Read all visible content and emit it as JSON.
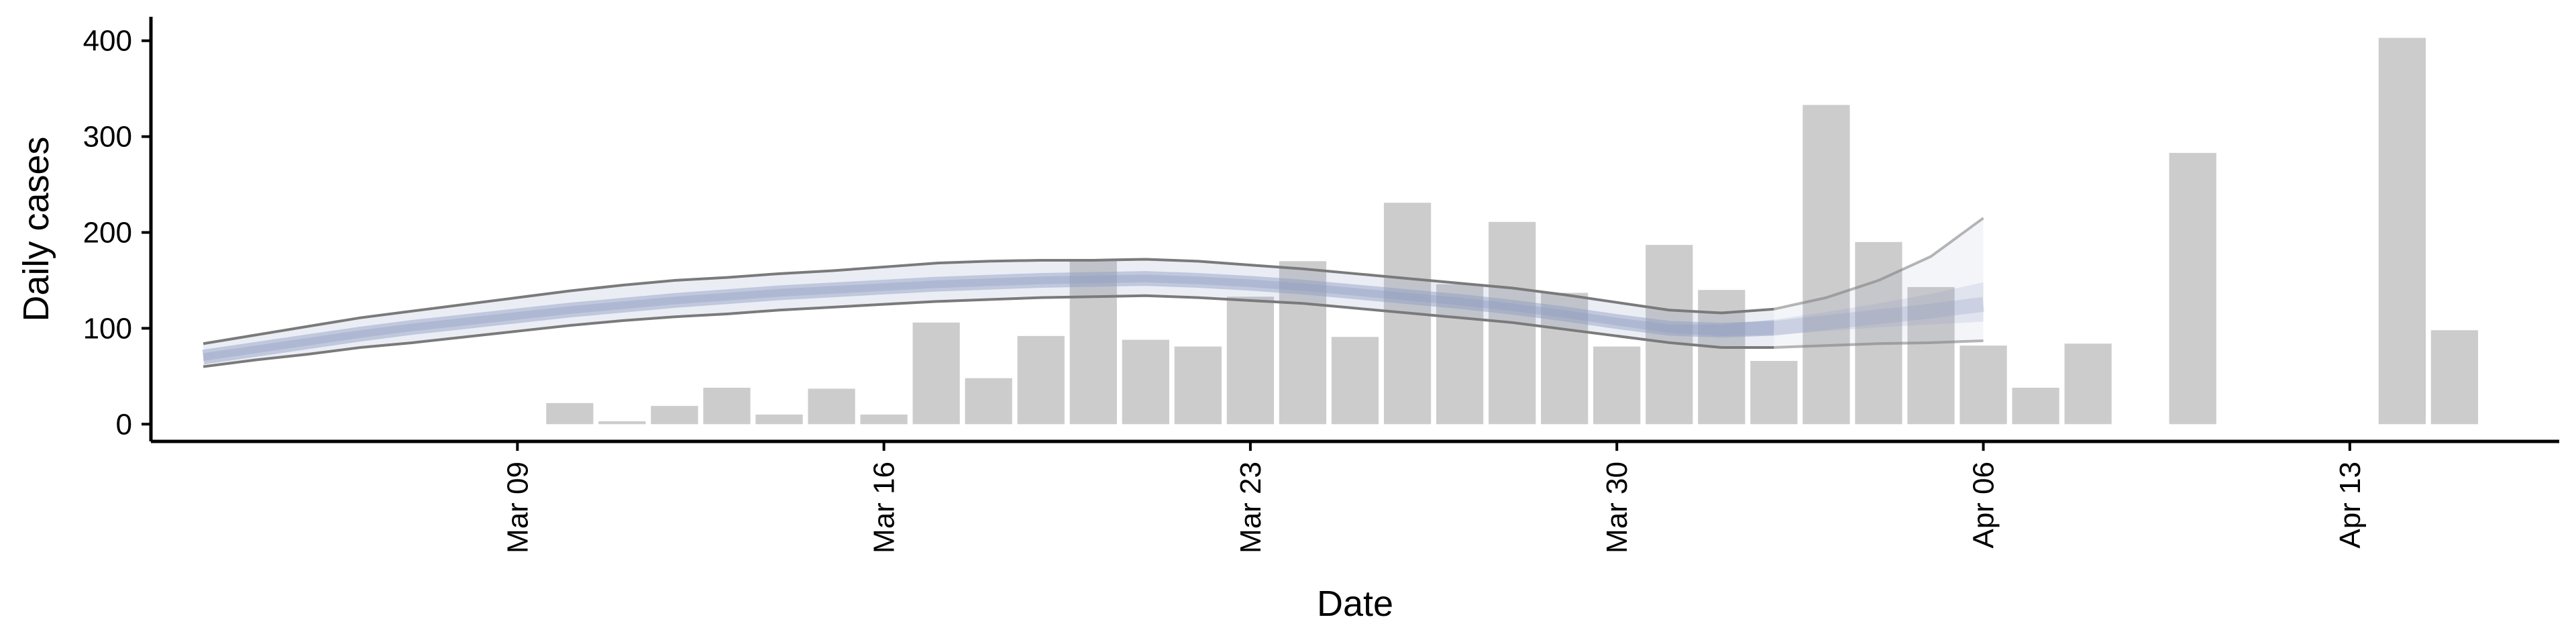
{
  "chart_data": {
    "type": "bar",
    "xlabel": "Date",
    "ylabel": "Daily cases",
    "ylim": [
      -18,
      425
    ],
    "xlim": [
      "2020-03-02",
      "2020-04-17"
    ],
    "x_ticks": [
      {
        "date": "2020-03-09",
        "label": "Mar 09"
      },
      {
        "date": "2020-03-16",
        "label": "Mar 16"
      },
      {
        "date": "2020-03-23",
        "label": "Mar 23"
      },
      {
        "date": "2020-03-30",
        "label": "Mar 30"
      },
      {
        "date": "2020-04-06",
        "label": "Apr 06"
      },
      {
        "date": "2020-04-13",
        "label": "Apr 13"
      }
    ],
    "y_ticks": [
      0,
      100,
      200,
      300,
      400
    ],
    "grid": false,
    "bar_color": "#cccccc",
    "bars": [
      {
        "date": "2020-03-10",
        "value": 22
      },
      {
        "date": "2020-03-11",
        "value": 3
      },
      {
        "date": "2020-03-12",
        "value": 19
      },
      {
        "date": "2020-03-13",
        "value": 38
      },
      {
        "date": "2020-03-14",
        "value": 10
      },
      {
        "date": "2020-03-15",
        "value": 37
      },
      {
        "date": "2020-03-16",
        "value": 10
      },
      {
        "date": "2020-03-17",
        "value": 106
      },
      {
        "date": "2020-03-18",
        "value": 48
      },
      {
        "date": "2020-03-19",
        "value": 92
      },
      {
        "date": "2020-03-20",
        "value": 172
      },
      {
        "date": "2020-03-21",
        "value": 88
      },
      {
        "date": "2020-03-22",
        "value": 81
      },
      {
        "date": "2020-03-23",
        "value": 133
      },
      {
        "date": "2020-03-24",
        "value": 170
      },
      {
        "date": "2020-03-25",
        "value": 91
      },
      {
        "date": "2020-03-26",
        "value": 231
      },
      {
        "date": "2020-03-27",
        "value": 146
      },
      {
        "date": "2020-03-28",
        "value": 211
      },
      {
        "date": "2020-03-29",
        "value": 137
      },
      {
        "date": "2020-03-30",
        "value": 81
      },
      {
        "date": "2020-03-31",
        "value": 187
      },
      {
        "date": "2020-04-01",
        "value": 140
      },
      {
        "date": "2020-04-02",
        "value": 66
      },
      {
        "date": "2020-04-03",
        "value": 333
      },
      {
        "date": "2020-04-04",
        "value": 190
      },
      {
        "date": "2020-04-05",
        "value": 143
      },
      {
        "date": "2020-04-06",
        "value": 82
      },
      {
        "date": "2020-04-07",
        "value": 38
      },
      {
        "date": "2020-04-08",
        "value": 84
      },
      {
        "date": "2020-04-10",
        "value": 283
      },
      {
        "date": "2020-04-14",
        "value": 403
      },
      {
        "date": "2020-04-15",
        "value": 98
      }
    ],
    "estimate": {
      "dates": [
        "2020-03-03",
        "2020-03-04",
        "2020-03-05",
        "2020-03-06",
        "2020-03-07",
        "2020-03-08",
        "2020-03-09",
        "2020-03-10",
        "2020-03-11",
        "2020-03-12",
        "2020-03-13",
        "2020-03-14",
        "2020-03-15",
        "2020-03-16",
        "2020-03-17",
        "2020-03-18",
        "2020-03-19",
        "2020-03-20",
        "2020-03-21",
        "2020-03-22",
        "2020-03-23",
        "2020-03-24",
        "2020-03-25",
        "2020-03-26",
        "2020-03-27",
        "2020-03-28",
        "2020-03-29",
        "2020-03-30",
        "2020-03-31",
        "2020-04-01",
        "2020-04-02",
        "2020-04-03",
        "2020-04-04",
        "2020-04-05",
        "2020-04-06"
      ],
      "median": [
        70,
        78,
        86,
        94,
        101,
        107,
        113,
        119,
        124,
        129,
        133,
        137,
        140,
        143,
        146,
        148,
        150,
        151,
        152,
        150,
        147,
        143,
        138,
        133,
        128,
        122,
        115,
        107,
        100,
        98,
        100,
        106,
        112,
        118,
        125
      ],
      "inner_lower": [
        66,
        74,
        82,
        90,
        97,
        103,
        109,
        115,
        120,
        125,
        129,
        133,
        136,
        139,
        142,
        144,
        146,
        147,
        148,
        146,
        143,
        139,
        134,
        129,
        124,
        118,
        111,
        103,
        95,
        92,
        93,
        97,
        101,
        104,
        107
      ],
      "inner_upper": [
        74,
        82,
        90,
        98,
        105,
        111,
        117,
        123,
        128,
        133,
        137,
        141,
        144,
        147,
        150,
        152,
        154,
        155,
        156,
        154,
        151,
        147,
        142,
        137,
        132,
        126,
        119,
        111,
        104,
        104,
        109,
        117,
        126,
        136,
        148
      ],
      "lower": [
        60,
        67,
        73,
        80,
        85,
        91,
        97,
        103,
        108,
        112,
        115,
        119,
        122,
        125,
        128,
        130,
        132,
        133,
        134,
        132,
        129,
        126,
        121,
        116,
        111,
        106,
        99,
        92,
        85,
        80,
        80,
        82,
        84,
        85,
        87
      ],
      "upper": [
        84,
        93,
        102,
        111,
        118,
        125,
        132,
        139,
        145,
        150,
        153,
        157,
        160,
        164,
        168,
        170,
        171,
        171,
        172,
        170,
        166,
        162,
        157,
        152,
        147,
        142,
        135,
        127,
        119,
        116,
        120,
        132,
        150,
        175,
        215
      ],
      "forecast_start": "2020-04-02",
      "line_color": "#7a7a7a",
      "band_color": "#8d9bc0"
    }
  }
}
